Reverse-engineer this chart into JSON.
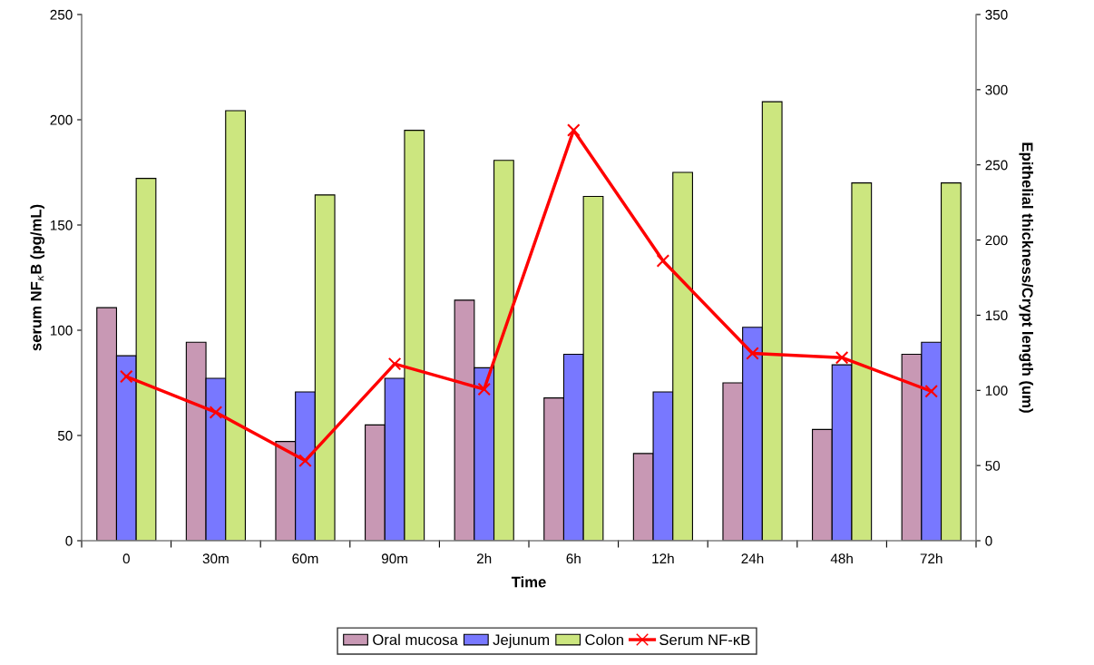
{
  "chart_data": {
    "type": "bar",
    "xlabel": "Time",
    "ylabel": "serum NF$_{κ}$B (pg/mL)",
    "y2label": "Epithelial thickness/Crypt length (um)",
    "categories": [
      "0",
      "30m",
      "60m",
      "90m",
      "2h",
      "6h",
      "12h",
      "24h",
      "48h",
      "72h"
    ],
    "series": [
      {
        "name": "Oral mucosa",
        "color": "#c898b4",
        "axis": "y2",
        "values": [
          155,
          132,
          66,
          77,
          160,
          95,
          58,
          105,
          74,
          124
        ]
      },
      {
        "name": "Jejunum",
        "color": "#7878ff",
        "axis": "y2",
        "values": [
          123,
          108,
          99,
          108,
          115,
          124,
          99,
          142,
          117,
          132
        ]
      },
      {
        "name": "Colon",
        "color": "#cce67f",
        "axis": "y2",
        "values": [
          241,
          286,
          230,
          273,
          253,
          229,
          245,
          292,
          238,
          238
        ]
      },
      {
        "name": "Serum NF-κB",
        "color": "#ff0000",
        "type": "line",
        "marker": "cross",
        "values": [
          78,
          61,
          38,
          84,
          72,
          195,
          133,
          89,
          87,
          71
        ]
      }
    ],
    "ylim": [
      0,
      250
    ],
    "yticks": [
      0,
      50,
      100,
      150,
      200,
      250
    ],
    "y2lim": [
      0,
      350
    ],
    "y2ticks": [
      0,
      50,
      100,
      150,
      200,
      250,
      300,
      350
    ],
    "grid": false,
    "legend": "bottom"
  }
}
